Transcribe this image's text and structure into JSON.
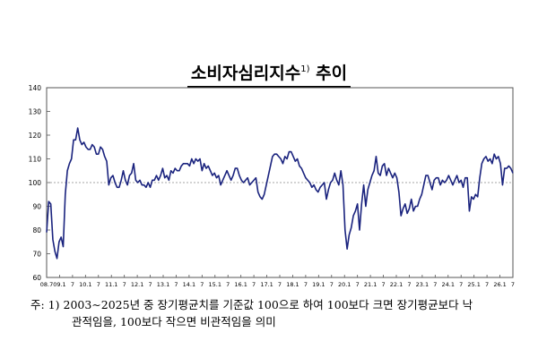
{
  "title": {
    "main": "소비자심리지수",
    "footnote_mark": "1)",
    "suffix": "추이"
  },
  "note": {
    "line1": "주: 1) 2003∼2025년 중 장기평균치를 기준값 100으로 하여 100보다 크면 장기평균보다 낙",
    "line2": "관적임을, 100보다 작으면 비관적임을 의미"
  },
  "chart_data": {
    "type": "line",
    "title": "소비자심리지수 추이",
    "ylim": [
      60,
      140
    ],
    "yticks": [
      60,
      70,
      80,
      90,
      100,
      110,
      120,
      130,
      140
    ],
    "reference_line": 100,
    "grid": false,
    "start": "2008-07",
    "xtick_labels": [
      "08.7",
      "09.1",
      "7",
      "10.1",
      "7",
      "11.1",
      "7",
      "12.1",
      "7",
      "13.1",
      "7",
      "14.1",
      "7",
      "15.1",
      "7",
      "16.1",
      "7",
      "17.1",
      "7",
      "18.1",
      "7",
      "19.1",
      "7",
      "20.1",
      "7",
      "21.1",
      "7",
      "22.1",
      "7",
      "23.1",
      "7",
      "24.1",
      "7",
      "25.1",
      "7",
      "26.1",
      "7"
    ],
    "series": [
      {
        "color": "#1a237e",
        "values": [
          79,
          92,
          91,
          76,
          71,
          68,
          75,
          77,
          73,
          95,
          105,
          108,
          110,
          118,
          118,
          123,
          118,
          116,
          117,
          115,
          114,
          114,
          116,
          115,
          112,
          112,
          115,
          114,
          111,
          109,
          99,
          102,
          103,
          100,
          98,
          98,
          101,
          105,
          101,
          99,
          103,
          104,
          108,
          101,
          100,
          101,
          99,
          99,
          98,
          100,
          98,
          101,
          101,
          103,
          101,
          103,
          106,
          102,
          103,
          101,
          105,
          104,
          106,
          105,
          105,
          107,
          108,
          108,
          108,
          107,
          110,
          108,
          110,
          109,
          110,
          105,
          108,
          106,
          107,
          105,
          103,
          104,
          102,
          103,
          99,
          101,
          103,
          105,
          103,
          101,
          103,
          106,
          106,
          103,
          101,
          100,
          101,
          102,
          99,
          100,
          101,
          102,
          96,
          94,
          93,
          95,
          99,
          103,
          107,
          111,
          112,
          112,
          111,
          110,
          108,
          111,
          110,
          113,
          113,
          111,
          109,
          110,
          107,
          106,
          104,
          102,
          101,
          100,
          98,
          99,
          97,
          96,
          98,
          99,
          100,
          93,
          97,
          100,
          101,
          104,
          101,
          99,
          105,
          99,
          80,
          72,
          78,
          81,
          86,
          88,
          91,
          80,
          91,
          99,
          90,
          97,
          100,
          103,
          105,
          111,
          104,
          103,
          107,
          108,
          103,
          106,
          104,
          102,
          104,
          102,
          96,
          86,
          89,
          91,
          87,
          89,
          93,
          88,
          90,
          90,
          93,
          95,
          99,
          103,
          103,
          100,
          97,
          101,
          102,
          102,
          99,
          101,
          100,
          101,
          103,
          101,
          99,
          101,
          103,
          100,
          101,
          98,
          102,
          102,
          88,
          94,
          93,
          95,
          94,
          102,
          108,
          110,
          111,
          109,
          110,
          108,
          112,
          110,
          111,
          108,
          99,
          106,
          106,
          107,
          106,
          104
        ]
      }
    ]
  }
}
